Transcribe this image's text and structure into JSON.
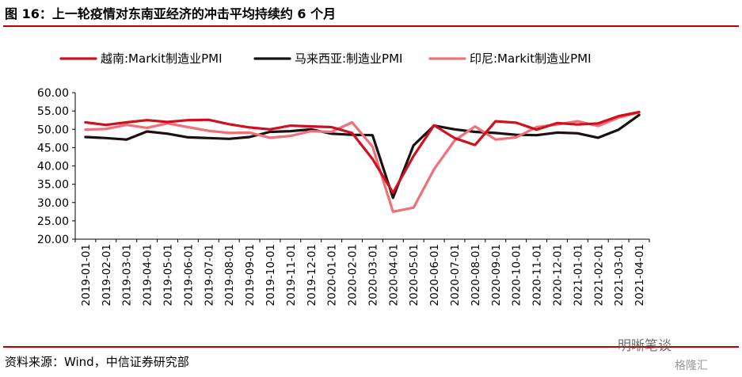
{
  "title": "图 16：上一轮疫情对东南亚经济的冲击平均持续约 6 个月",
  "source": "资料来源：Wind，中信证券研究部",
  "watermark": "明晰笔谈",
  "watermark_sub": "格隆汇",
  "chart_data": {
    "type": "line",
    "ylim": [
      20,
      60
    ],
    "yticks": [
      "20.00",
      "25.00",
      "30.00",
      "35.00",
      "40.00",
      "45.00",
      "50.00",
      "55.00",
      "60.00"
    ],
    "x": [
      "2019-01-01",
      "2019-02-01",
      "2019-03-01",
      "2019-04-01",
      "2019-05-01",
      "2019-06-01",
      "2019-07-01",
      "2019-08-01",
      "2019-09-01",
      "2019-10-01",
      "2019-11-01",
      "2019-12-01",
      "2020-01-01",
      "2020-02-01",
      "2020-03-01",
      "2020-04-01",
      "2020-05-01",
      "2020-06-01",
      "2020-07-01",
      "2020-08-01",
      "2020-09-01",
      "2020-10-01",
      "2020-11-01",
      "2020-12-01",
      "2021-01-01",
      "2021-02-01",
      "2021-03-01",
      "2021-04-01"
    ],
    "legend_position": "top",
    "series": [
      {
        "name": "越南:Markit制造业PMI",
        "color": "#d0101f",
        "values": [
          51.9,
          51.2,
          51.9,
          52.5,
          52.0,
          52.5,
          52.6,
          51.4,
          50.5,
          50.0,
          51.0,
          50.8,
          50.6,
          49.0,
          41.9,
          32.7,
          42.7,
          51.1,
          47.6,
          45.7,
          52.2,
          51.8,
          49.9,
          51.7,
          51.3,
          51.6,
          53.6,
          54.7
        ]
      },
      {
        "name": "马来西亚:制造业PMI",
        "color": "#1a1010",
        "values": [
          47.9,
          47.6,
          47.2,
          49.4,
          48.8,
          47.8,
          47.6,
          47.4,
          47.9,
          49.3,
          49.5,
          50.0,
          48.8,
          48.5,
          48.4,
          31.3,
          45.6,
          51.0,
          50.0,
          49.3,
          49.0,
          48.5,
          48.4,
          49.1,
          48.9,
          47.7,
          49.9,
          53.9
        ]
      },
      {
        "name": "印尼:Markit制造业PMI",
        "color": "#f0707a",
        "values": [
          49.9,
          50.1,
          51.2,
          50.4,
          51.6,
          50.6,
          49.6,
          49.0,
          49.1,
          47.7,
          48.2,
          49.5,
          49.3,
          51.9,
          45.3,
          27.5,
          28.6,
          39.1,
          46.9,
          50.8,
          47.2,
          47.8,
          50.6,
          51.3,
          52.2,
          50.9,
          53.2,
          54.6
        ]
      }
    ]
  }
}
